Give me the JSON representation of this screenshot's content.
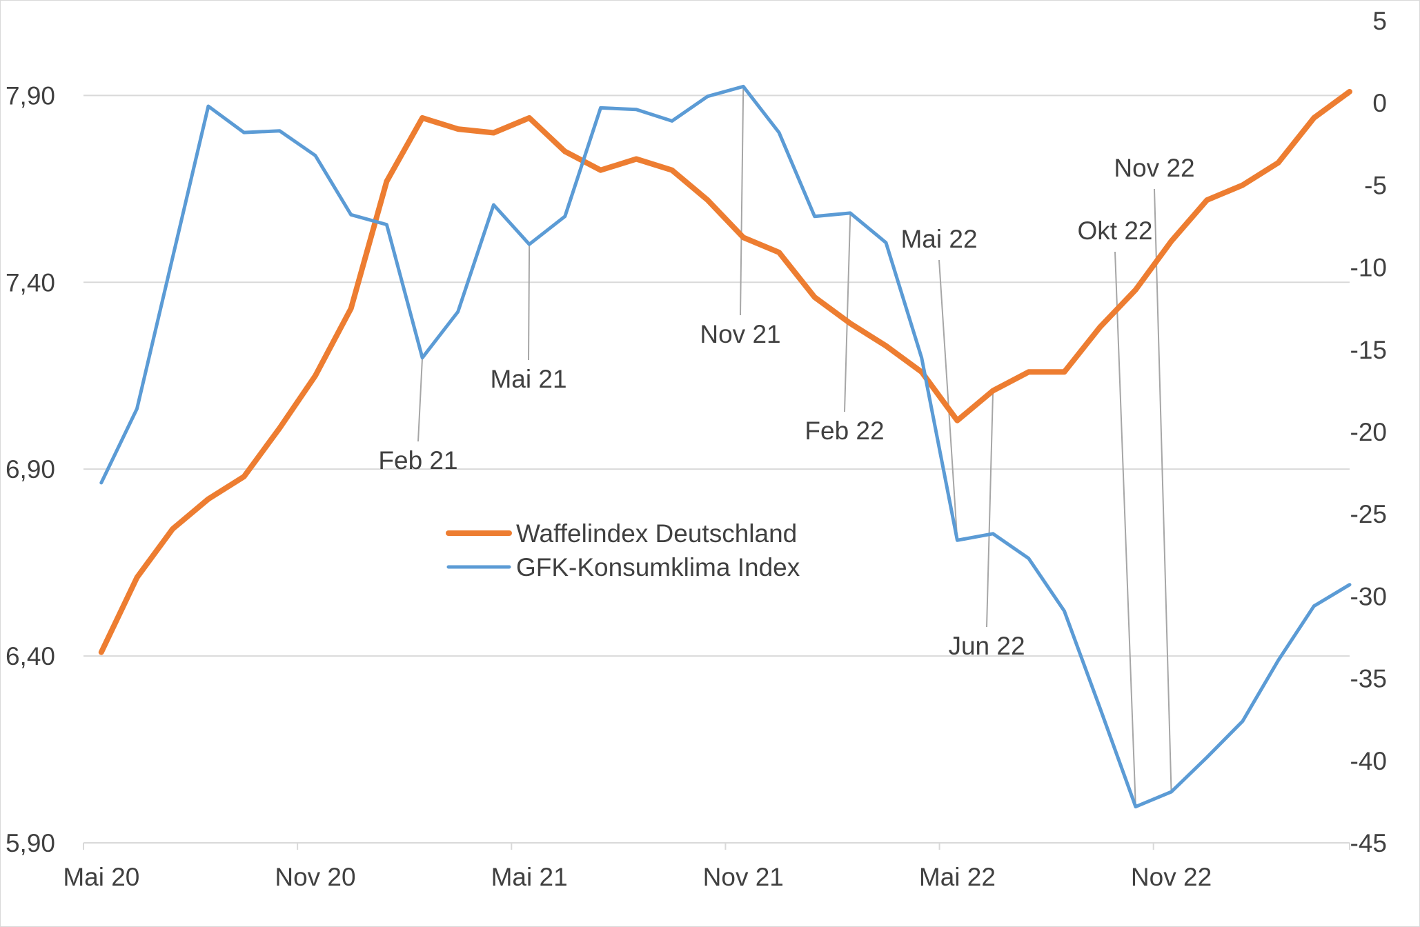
{
  "chart_data": {
    "type": "line",
    "x": [
      "Mai 20",
      "Jun 20",
      "Jul 20",
      "Aug 20",
      "Sep 20",
      "Okt 20",
      "Nov 20",
      "Dez 20",
      "Jan 21",
      "Feb 21",
      "Mär 21",
      "Apr 21",
      "Mai 21",
      "Jun 21",
      "Jul 21",
      "Aug 21",
      "Sep 21",
      "Okt 21",
      "Nov 21",
      "Dez 21",
      "Jan 22",
      "Feb 22",
      "Mär 22",
      "Apr 22",
      "Mai 22",
      "Jun 22",
      "Jul 22",
      "Aug 22",
      "Sep 22",
      "Okt 22",
      "Nov 22",
      "Dez 22",
      "Jan 23",
      "Feb 23",
      "Mär 23",
      "Apr 23"
    ],
    "x_tick_labels": [
      "Mai 20",
      "Nov 20",
      "Mai 21",
      "Nov 21",
      "Mai 22",
      "Nov 22"
    ],
    "series": [
      {
        "name": "Waffelindex Deutschland",
        "axis": "left",
        "color": "#ED7D31",
        "values": [
          6.41,
          6.61,
          6.74,
          6.82,
          6.88,
          7.01,
          7.15,
          7.33,
          7.67,
          7.84,
          7.81,
          7.8,
          7.84,
          7.75,
          7.7,
          7.73,
          7.7,
          7.62,
          7.52,
          7.48,
          7.36,
          7.29,
          7.23,
          7.16,
          7.03,
          7.11,
          7.16,
          7.16,
          7.28,
          7.38,
          7.51,
          7.62,
          7.66,
          7.72,
          7.84,
          7.91
        ]
      },
      {
        "name": "GFK-Konsumklima Index",
        "axis": "right",
        "color": "#5B9BD5",
        "values": [
          -23.1,
          -18.6,
          -9.4,
          -0.2,
          -1.8,
          -1.7,
          -3.2,
          -6.8,
          -7.4,
          -15.5,
          -12.7,
          -6.2,
          -8.6,
          -6.9,
          -0.3,
          -0.4,
          -1.1,
          0.4,
          1.0,
          -1.8,
          -6.9,
          -6.7,
          -8.5,
          -15.5,
          -26.6,
          -26.2,
          -27.7,
          -30.9,
          -36.8,
          -42.8,
          -41.9,
          -39.8,
          -37.6,
          -33.9,
          -30.6,
          -29.3
        ]
      }
    ],
    "y_left": {
      "ylim": [
        5.9,
        8.1
      ],
      "ticks": [
        "5,90",
        "6,40",
        "6,90",
        "7,40",
        "7,90"
      ]
    },
    "y_right": {
      "ylim": [
        -45,
        5
      ],
      "ticks": [
        "5",
        "0",
        "-5",
        "-10",
        "-15",
        "-20",
        "-25",
        "-30",
        "-35",
        "-40",
        "-45"
      ]
    },
    "annotations": [
      {
        "text": "Feb 21",
        "x_index": 9,
        "series": "GFK-Konsumklima Index"
      },
      {
        "text": "Mai 21",
        "x_index": 12,
        "series": "GFK-Konsumklima Index"
      },
      {
        "text": "Nov 21",
        "x_index": 18,
        "series": "GFK-Konsumklima Index"
      },
      {
        "text": "Feb 22",
        "x_index": 21,
        "series": "GFK-Konsumklima Index"
      },
      {
        "text": "Mai 22",
        "x_index": 24,
        "series": "GFK-Konsumklima Index"
      },
      {
        "text": "Jun 22",
        "x_index": 25,
        "series": "Waffelindex Deutschland"
      },
      {
        "text": "Okt 22",
        "x_index": 29,
        "series": "GFK-Konsumklima Index"
      },
      {
        "text": "Nov 22",
        "x_index": 30,
        "series": "GFK-Konsumklima Index"
      }
    ],
    "grid": true,
    "legend_position": "center"
  }
}
